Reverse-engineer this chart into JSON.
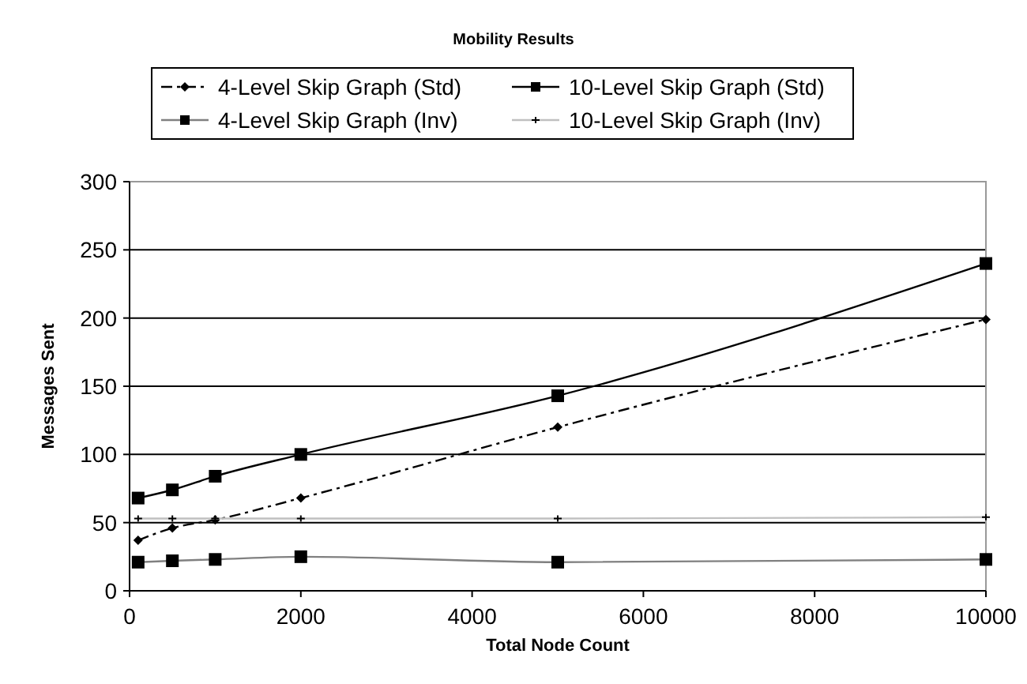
{
  "chart_data": {
    "type": "line",
    "title": "Mobility Results",
    "xlabel": "Total Node Count",
    "ylabel": "Messages Sent",
    "x": [
      100,
      500,
      1000,
      2000,
      5000,
      10000
    ],
    "series": [
      {
        "name": "4-Level Skip Graph (Std)",
        "color": "#000000",
        "values": [
          37,
          46,
          52,
          68,
          120,
          199
        ],
        "marker": "diamond",
        "line_style": "dashed"
      },
      {
        "name": "10-Level Skip Graph (Std)",
        "color": "#000000",
        "values": [
          68,
          74,
          84,
          100,
          143,
          240
        ],
        "marker": "square",
        "line_style": "solid"
      },
      {
        "name": "4-Level Skip Graph (Inv)",
        "color": "#808080",
        "values": [
          21,
          22,
          23,
          25,
          21,
          23
        ],
        "marker": "square",
        "line_style": "solid"
      },
      {
        "name": "10-Level Skip Graph (Inv)",
        "color": "#c0c0c0",
        "values": [
          53,
          53,
          53,
          53,
          53,
          54
        ],
        "marker": "cross",
        "line_style": "solid"
      }
    ],
    "xlim": [
      0,
      10000
    ],
    "xticks": [
      0,
      2000,
      4000,
      6000,
      8000,
      10000
    ],
    "ylim": [
      0,
      300
    ],
    "yticks": [
      0,
      50,
      100,
      150,
      200,
      250,
      300
    ],
    "grid": "y",
    "legend": "top"
  }
}
